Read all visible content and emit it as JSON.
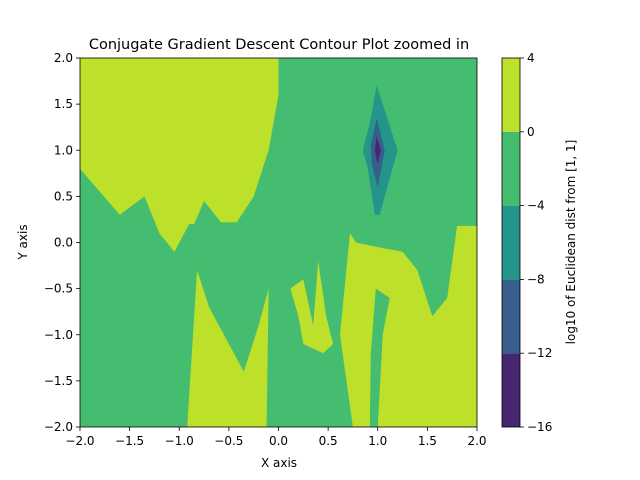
{
  "chart_data": {
    "type": "contour",
    "title": "Conjugate Gradient Descent Contour Plot zoomed in",
    "xlabel": "X axis",
    "ylabel": "Y axis",
    "xlim": [
      -2.0,
      2.0
    ],
    "ylim": [
      -2.0,
      2.0
    ],
    "x_ticks": [
      "−2.0",
      "−1.5",
      "−1.0",
      "−0.5",
      "0.0",
      "0.5",
      "1.0",
      "1.5",
      "2.0"
    ],
    "y_ticks": [
      "−2.0",
      "−1.5",
      "−1.0",
      "−0.5",
      "0.0",
      "0.5",
      "1.0",
      "1.5",
      "2.0"
    ],
    "x_tick_values": [
      -2.0,
      -1.5,
      -1.0,
      -0.5,
      0.0,
      0.5,
      1.0,
      1.5,
      2.0
    ],
    "y_tick_values": [
      -2.0,
      -1.5,
      -1.0,
      -0.5,
      0.0,
      0.5,
      1.0,
      1.5,
      2.0
    ],
    "colorbar": {
      "label": "log10 of Euclidean dist from [1, 1]",
      "levels": [
        -16,
        -12,
        -8,
        -4,
        0,
        4
      ],
      "tick_labels": [
        "−16",
        "−12",
        "−8",
        "−4",
        "0",
        "4"
      ],
      "colors": [
        "#46266f",
        "#375e8d",
        "#24958a",
        "#45bd70",
        "#bde02a"
      ]
    },
    "grid": false,
    "minimum_point": [
      1.0,
      1.0
    ],
    "regions": [
      {
        "level": "0 to 4",
        "color": "#bde02a",
        "polygon": [
          [
            -2,
            2
          ],
          [
            0.0,
            2
          ],
          [
            0.0,
            1.6
          ],
          [
            -0.1,
            1.0
          ],
          [
            -0.25,
            0.5
          ],
          [
            -0.42,
            0.22
          ],
          [
            -0.58,
            0.22
          ],
          [
            -0.75,
            0.45
          ],
          [
            -0.85,
            0.2
          ],
          [
            -0.9,
            0.2
          ],
          [
            -1.05,
            -0.1
          ],
          [
            -1.2,
            0.1
          ],
          [
            -1.35,
            0.5
          ],
          [
            -1.6,
            0.3
          ],
          [
            -2,
            0.8
          ]
        ]
      },
      {
        "level": "0 to 4",
        "color": "#bde02a",
        "polygon": [
          [
            -0.92,
            -2
          ],
          [
            -0.82,
            -0.3
          ],
          [
            -0.7,
            -0.7
          ],
          [
            -0.55,
            -1.0
          ],
          [
            -0.35,
            -1.4
          ],
          [
            -0.2,
            -0.9
          ],
          [
            -0.1,
            -0.5
          ],
          [
            -0.12,
            -2
          ]
        ]
      },
      {
        "level": "0 to 4",
        "color": "#bde02a",
        "polygon": [
          [
            0.12,
            -0.5
          ],
          [
            0.25,
            -0.4
          ],
          [
            0.35,
            -0.9
          ],
          [
            0.4,
            -0.2
          ],
          [
            0.48,
            -0.8
          ],
          [
            0.55,
            -1.1
          ],
          [
            0.45,
            -1.2
          ],
          [
            0.25,
            -1.1
          ],
          [
            0.2,
            -0.8
          ]
        ]
      },
      {
        "level": "0 to 4",
        "color": "#bde02a",
        "polygon": [
          [
            0.75,
            -2
          ],
          [
            0.62,
            -1.0
          ],
          [
            0.72,
            0.1
          ],
          [
            0.78,
            0.0
          ],
          [
            1.0,
            -0.05
          ],
          [
            1.25,
            -0.1
          ],
          [
            1.4,
            -0.3
          ],
          [
            1.55,
            -0.8
          ],
          [
            1.7,
            -0.6
          ],
          [
            1.8,
            0.18
          ],
          [
            2,
            0.18
          ],
          [
            2,
            -2
          ],
          [
            1.0,
            -2
          ],
          [
            1.05,
            -1.0
          ],
          [
            1.12,
            -0.6
          ],
          [
            0.98,
            -0.5
          ],
          [
            0.93,
            -1.2
          ],
          [
            0.92,
            -2
          ]
        ]
      },
      {
        "level": "-4 to 0",
        "color": "#45bd70",
        "polygon": [
          [
            -1.22,
            -2
          ],
          [
            -1.05,
            -0.4
          ],
          [
            -1.0,
            -1.7
          ],
          [
            -0.98,
            -2
          ]
        ]
      },
      {
        "level": "-8 to -4",
        "color": "#24958a",
        "polygon": [
          [
            0.99,
            1.7
          ],
          [
            1.2,
            1.0
          ],
          [
            1.02,
            0.3
          ],
          [
            0.97,
            0.3
          ],
          [
            0.9,
            0.8
          ],
          [
            0.85,
            1.0
          ],
          [
            0.92,
            1.3
          ]
        ]
      },
      {
        "level": "-12 to -8",
        "color": "#375e8d",
        "polygon": [
          [
            0.99,
            1.35
          ],
          [
            1.07,
            1.0
          ],
          [
            1.0,
            0.6
          ],
          [
            0.94,
            0.85
          ],
          [
            0.93,
            1.05
          ]
        ]
      },
      {
        "level": "-16 to -12",
        "color": "#46266f",
        "polygon": [
          [
            0.99,
            1.15
          ],
          [
            1.03,
            1.0
          ],
          [
            1.0,
            0.85
          ],
          [
            0.97,
            1.0
          ]
        ]
      }
    ]
  }
}
